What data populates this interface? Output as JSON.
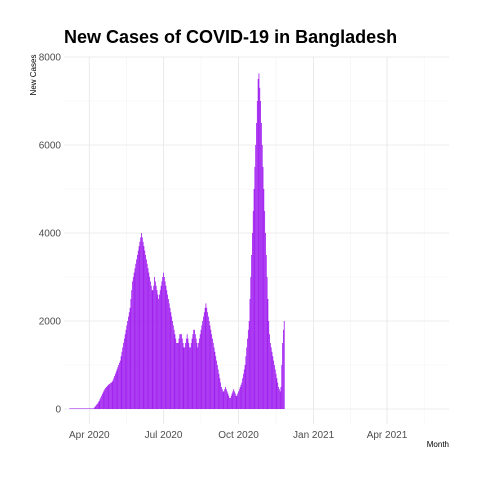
{
  "chart_data": {
    "type": "bar",
    "title": "New Cases of COVID-19 in Bangladesh",
    "xlabel": "Month",
    "ylabel": "New Cases",
    "ylim": [
      0,
      8000
    ],
    "yticks": [
      0,
      2000,
      4000,
      6000,
      8000
    ],
    "xticks": [
      "Apr 2020",
      "Jul 2020",
      "Oct 2020",
      "Jan 2021",
      "Apr 2021"
    ],
    "xtick_dates": [
      "2020-04-01",
      "2020-07-01",
      "2020-10-01",
      "2021-01-01",
      "2021-04-01"
    ],
    "xlim": [
      "2020-03-01",
      "2021-06-16"
    ],
    "bar_color": "#a020f0",
    "grid": true,
    "series": [
      {
        "x_start": "2020-03-08",
        "values": [
          3,
          0,
          0,
          0,
          0,
          0,
          0,
          0,
          2,
          3,
          4,
          3,
          5,
          8,
          2,
          6,
          4,
          5,
          3,
          7,
          5,
          4,
          5,
          5,
          4,
          6,
          5,
          8,
          8,
          12,
          30,
          50,
          75,
          100,
          120,
          150,
          180,
          220,
          260,
          300,
          340,
          380,
          420,
          450,
          480,
          500,
          520,
          540,
          560,
          570,
          590,
          600,
          620,
          650,
          700,
          750,
          800,
          850,
          900,
          950,
          1000,
          1050,
          1100,
          1200,
          1300,
          1400,
          1500,
          1600,
          1700,
          1800,
          1900,
          2000,
          2100,
          2200,
          2300,
          2500,
          2700,
          2900,
          3000,
          3100,
          3200,
          3300,
          3400,
          3500,
          3600,
          3700,
          3800,
          3900,
          4000,
          3900,
          3800,
          3700,
          3600,
          3500,
          3400,
          3300,
          3200,
          3100,
          3000,
          2900,
          2800,
          2700,
          2700,
          2800,
          3000,
          2900,
          2800,
          2700,
          2600,
          2500,
          2600,
          2700,
          2800,
          2900,
          3000,
          3100,
          3000,
          2900,
          2800,
          2700,
          2600,
          2500,
          2400,
          2300,
          2200,
          2100,
          2000,
          1900,
          1800,
          1700,
          1600,
          1500,
          1500,
          1500,
          1600,
          1700,
          1700,
          1700,
          1600,
          1500,
          1400,
          1400,
          1500,
          1600,
          1700,
          1600,
          1500,
          1400,
          1400,
          1500,
          1600,
          1700,
          1800,
          1800,
          1700,
          1600,
          1500,
          1400,
          1500,
          1600,
          1700,
          1800,
          1900,
          2000,
          2100,
          2200,
          2300,
          2400,
          2300,
          2200,
          2100,
          2000,
          1900,
          1800,
          1700,
          1600,
          1500,
          1400,
          1300,
          1200,
          1100,
          1000,
          900,
          800,
          700,
          600,
          500,
          450,
          400,
          400,
          450,
          500,
          450,
          400,
          350,
          300,
          250,
          250,
          300,
          350,
          400,
          450,
          400,
          350,
          300,
          300,
          350,
          400,
          450,
          500,
          550,
          600,
          700,
          800,
          900,
          1000,
          1200,
          1400,
          1600,
          1800,
          2000,
          2500,
          3000,
          3500,
          4000,
          4500,
          5000,
          5500,
          6000,
          6500,
          7000,
          7500,
          7626,
          7300,
          7000,
          6500,
          6000,
          5500,
          5000,
          4500,
          4000,
          3500,
          3000,
          2500,
          2000,
          1700,
          1500,
          1400,
          1300,
          1200,
          1100,
          1000,
          900,
          800,
          700,
          600,
          500,
          450,
          400,
          500,
          1000,
          1500,
          1800,
          2000
        ]
      }
    ]
  }
}
